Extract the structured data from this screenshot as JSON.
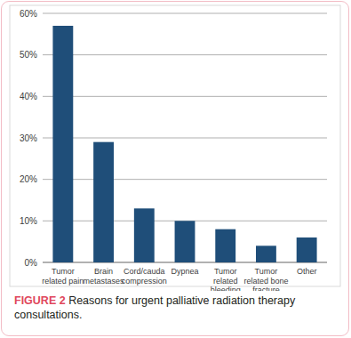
{
  "chart_data": {
    "type": "bar",
    "title": "Reasons for urgent palliative radiation therapy consultations.",
    "annotations": [
      "FIGURE 2"
    ],
    "categories": [
      "Tumor related pain",
      "Brain metastases",
      "Cord/cauda compression",
      "Dypnea",
      "Tumor related bleeding",
      "Tumor related bone fracture",
      "Other"
    ],
    "values": [
      57,
      29,
      13,
      10,
      8,
      4,
      6
    ],
    "color": "#1f4e79",
    "ylim": [
      0,
      60
    ],
    "yticks": [
      {
        "value": 0,
        "label": "0%"
      },
      {
        "value": 10,
        "label": "10%"
      },
      {
        "value": 20,
        "label": "20%"
      },
      {
        "value": 30,
        "label": "30%"
      },
      {
        "value": 40,
        "label": "40%"
      },
      {
        "value": 50,
        "label": "50%"
      },
      {
        "value": 60,
        "label": "60%"
      }
    ],
    "grid": true
  }
}
